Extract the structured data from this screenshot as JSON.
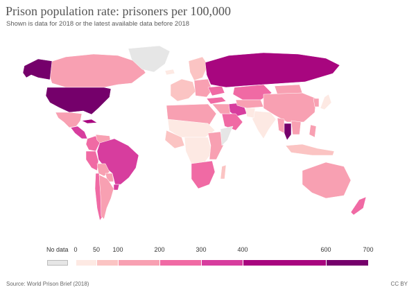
{
  "title": "Prison population rate: prisoners per 100,000",
  "subtitle": "Shown is data for 2018 or the latest available data before 2018",
  "source": "Source: World Prison Brief (2018)",
  "license": "CC BY",
  "legend": {
    "no_data_label": "No data",
    "no_data_color": "#e6e6e6",
    "tick_labels": [
      "0",
      "50",
      "100",
      "200",
      "300",
      "400",
      "600",
      "700"
    ],
    "bins": [
      {
        "from": 0,
        "to": 50,
        "color": "#fde9e3"
      },
      {
        "from": 50,
        "to": 100,
        "color": "#fbc4c3"
      },
      {
        "from": 100,
        "to": 200,
        "color": "#f8a0b2"
      },
      {
        "from": 200,
        "to": 300,
        "color": "#f06aa4"
      },
      {
        "from": 300,
        "to": 400,
        "color": "#d73d9e"
      },
      {
        "from": 400,
        "to": 600,
        "color": "#a8067f"
      },
      {
        "from": 600,
        "to": 700,
        "color": "#75006b"
      }
    ]
  },
  "map": {
    "regions": [
      {
        "name": "Canada",
        "color": "#f8a0b2"
      },
      {
        "name": "Alaska",
        "color": "#75006b"
      },
      {
        "name": "United States",
        "color": "#75006b"
      },
      {
        "name": "Greenland",
        "color": "#e6e6e6"
      },
      {
        "name": "Mexico",
        "color": "#f8a0b2"
      },
      {
        "name": "Cuba",
        "color": "#a8067f"
      },
      {
        "name": "Central America",
        "color": "#d73d9e"
      },
      {
        "name": "Colombia",
        "color": "#f06aa4"
      },
      {
        "name": "Venezuela",
        "color": "#f8a0b2"
      },
      {
        "name": "Peru",
        "color": "#f06aa4"
      },
      {
        "name": "Brazil",
        "color": "#d73d9e"
      },
      {
        "name": "Bolivia",
        "color": "#f8a0b2"
      },
      {
        "name": "Paraguay",
        "color": "#f8a0b2"
      },
      {
        "name": "Uruguay",
        "color": "#d73d9e"
      },
      {
        "name": "Chile",
        "color": "#f06aa4"
      },
      {
        "name": "Argentina",
        "color": "#f8a0b2"
      },
      {
        "name": "Iceland",
        "color": "#fde9e3"
      },
      {
        "name": "Scandinavia",
        "color": "#fbc4c3"
      },
      {
        "name": "Western Europe",
        "color": "#fbc4c3"
      },
      {
        "name": "Eastern Europe",
        "color": "#f8a0b2"
      },
      {
        "name": "Ukraine",
        "color": "#f06aa4"
      },
      {
        "name": "Russia",
        "color": "#a8067f"
      },
      {
        "name": "Kazakhstan",
        "color": "#f06aa4"
      },
      {
        "name": "Turkey",
        "color": "#f06aa4"
      },
      {
        "name": "Iran",
        "color": "#d73d9e"
      },
      {
        "name": "Central Asia",
        "color": "#f8a0b2"
      },
      {
        "name": "Mongolia",
        "color": "#f8a0b2"
      },
      {
        "name": "China",
        "color": "#f8a0b2"
      },
      {
        "name": "India",
        "color": "#fde9e3"
      },
      {
        "name": "Pakistan",
        "color": "#fde9e3"
      },
      {
        "name": "Saudi Arabia",
        "color": "#f06aa4"
      },
      {
        "name": "Middle East",
        "color": "#f8a0b2"
      },
      {
        "name": "Myanmar",
        "color": "#f8a0b2"
      },
      {
        "name": "Thailand",
        "color": "#75006b"
      },
      {
        "name": "Indochina",
        "color": "#f8a0b2"
      },
      {
        "name": "Japan",
        "color": "#fde9e3"
      },
      {
        "name": "Korea",
        "color": "#f8a0b2"
      },
      {
        "name": "Indonesia",
        "color": "#fbc4c3"
      },
      {
        "name": "Philippines",
        "color": "#f8a0b2"
      },
      {
        "name": "North Africa",
        "color": "#f8a0b2"
      },
      {
        "name": "Sahel",
        "color": "#fde9e3"
      },
      {
        "name": "West Africa",
        "color": "#fbc4c3"
      },
      {
        "name": "Central Africa",
        "color": "#fde9e3"
      },
      {
        "name": "East Africa",
        "color": "#f8a0b2"
      },
      {
        "name": "Horn of Africa",
        "color": "#e6e6e6"
      },
      {
        "name": "Southern Africa",
        "color": "#f06aa4"
      },
      {
        "name": "Madagascar",
        "color": "#fbc4c3"
      },
      {
        "name": "Australia",
        "color": "#f8a0b2"
      },
      {
        "name": "New Zealand",
        "color": "#f06aa4"
      }
    ]
  }
}
